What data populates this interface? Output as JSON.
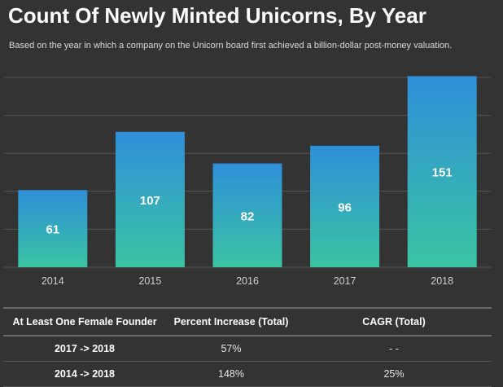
{
  "header": {
    "title": "Count Of Newly Minted Unicorns, By Year",
    "subtitle": "Based on the year in which a company on the Unicorn board first achieved a billion-dollar post-money valuation."
  },
  "colors": {
    "background": "#333333",
    "bar_top": "#2f8fd9",
    "bar_bottom": "#3ac4a2",
    "grid": "#555555"
  },
  "chart_data": {
    "type": "bar",
    "title": "Count Of Newly Minted Unicorns, By Year",
    "categories": [
      "2014",
      "2015",
      "2016",
      "2017",
      "2018"
    ],
    "values": [
      61,
      107,
      82,
      96,
      151
    ],
    "data_labels": [
      "61",
      "107",
      "82",
      "96",
      "151"
    ],
    "ylim": [
      0,
      150
    ],
    "grid": true,
    "legend": "none"
  },
  "table": {
    "headers": [
      "At Least One Female Founder",
      "Percent Increase (Total)",
      "CAGR (Total)"
    ],
    "rows": [
      [
        "2017 -> 2018",
        "57%",
        "- -"
      ],
      [
        "2014 -> 2018",
        "148%",
        "25%"
      ]
    ]
  }
}
